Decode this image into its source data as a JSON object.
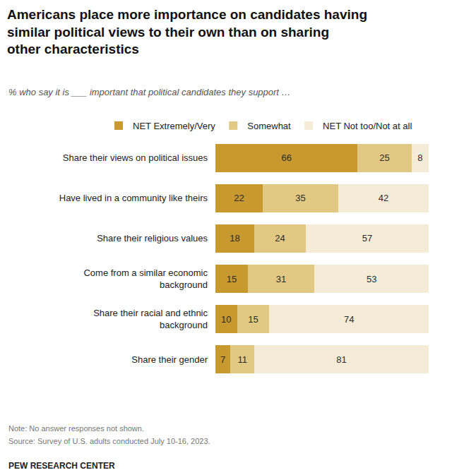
{
  "chart_data": {
    "type": "bar",
    "title": "Americans place more importance on candidates having similar political views to their own than on sharing other characteristics",
    "subtitle": "% who say it is ___ important that political candidates they support …",
    "categories": [
      "Share their views on political issues",
      "Have lived in a community like theirs",
      "Share their religious values",
      "Come from a similar economic background",
      "Share their racial and ethnic background",
      "Share their gender"
    ],
    "series": [
      {
        "name": "NET Extremely/Very",
        "color": "#c8992e",
        "values": [
          66,
          22,
          18,
          15,
          10,
          7
        ]
      },
      {
        "name": "Somewhat",
        "color": "#e2c983",
        "values": [
          25,
          35,
          24,
          31,
          15,
          11
        ]
      },
      {
        "name": "NET Not too/Not at all",
        "color": "#f4ecd6",
        "values": [
          8,
          42,
          57,
          53,
          74,
          81
        ]
      }
    ],
    "orientation": "horizontal",
    "stacked": true,
    "data_labels": true,
    "tick_labels": "y",
    "legend": "top",
    "grid": false,
    "xlim": [
      0,
      99
    ],
    "annotations": [
      "Note: No answer responses not shown.",
      "Source: Survey of U.S. adults conducted July 10-16, 2023.",
      "PEW RESEARCH CENTER"
    ]
  }
}
